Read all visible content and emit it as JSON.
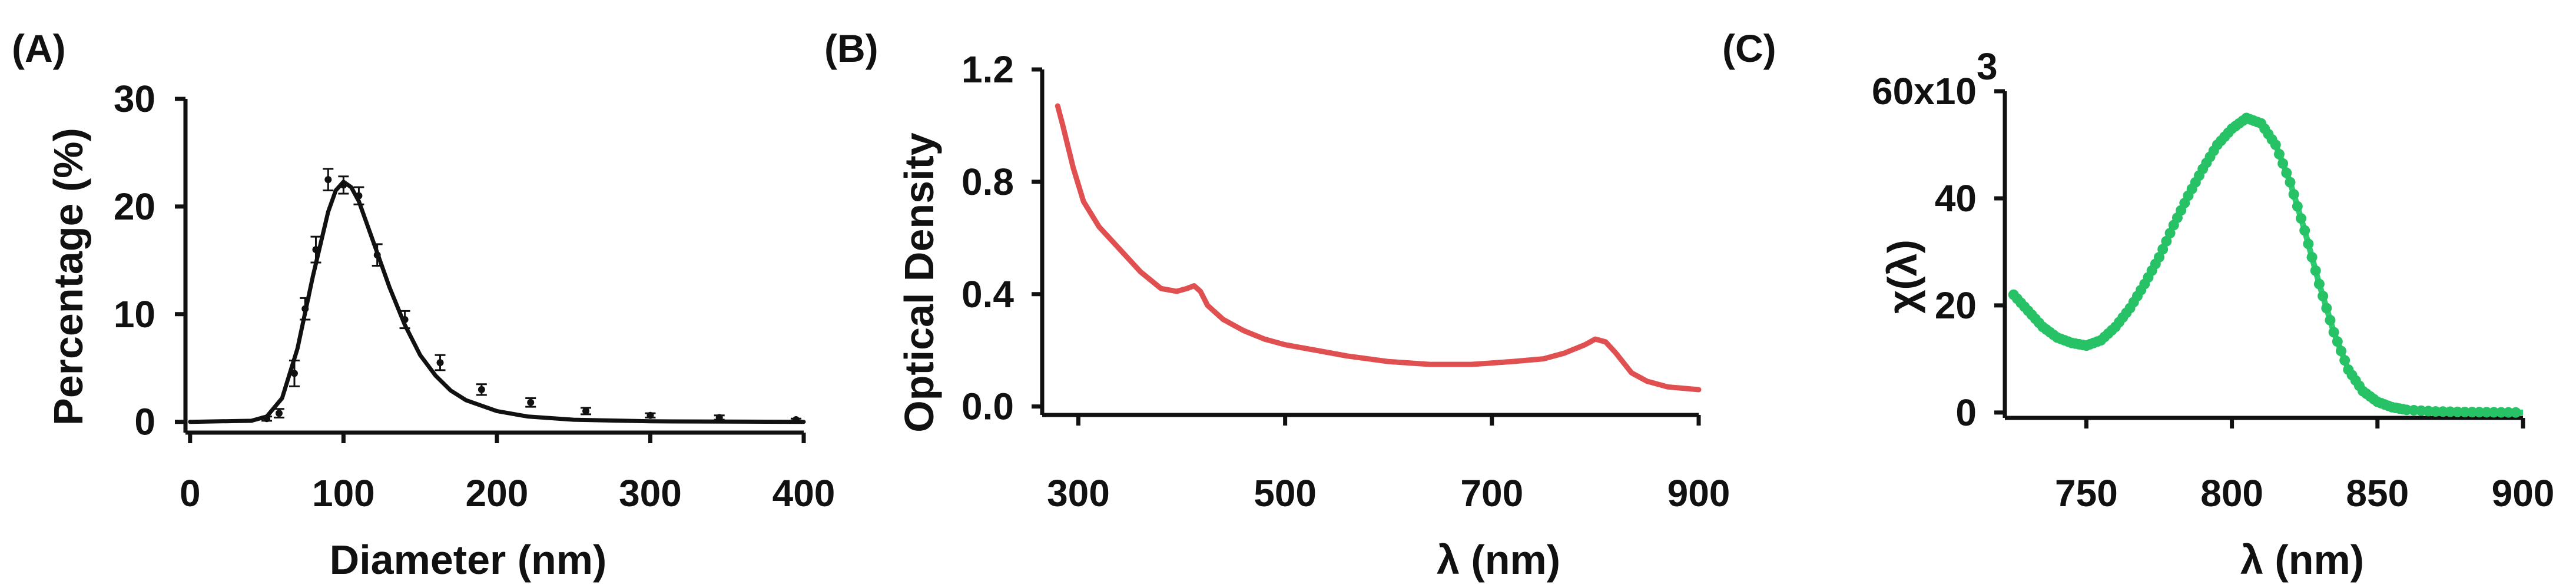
{
  "chart_data": [
    {
      "type": "scatter",
      "panel_label": "(A)",
      "xlabel": "Diameter (nm)",
      "ylabel": "Percentage (%)",
      "xlim": [
        -3,
        400
      ],
      "ylim": [
        -1,
        30
      ],
      "xticks": [
        0,
        100,
        200,
        300,
        400
      ],
      "yticks": [
        0,
        10,
        20,
        30
      ],
      "tick_labels_x": [
        "0",
        "100",
        "200",
        "300",
        "400"
      ],
      "tick_labels_y": [
        "0",
        "10",
        "20",
        "30"
      ],
      "series": [
        {
          "kind": "points_with_errorbars",
          "x": [
            50,
            58,
            68,
            75,
            82,
            90,
            100,
            110,
            122,
            140,
            163,
            190,
            222,
            258,
            300,
            345,
            395
          ],
          "y": [
            0.3,
            0.8,
            4.5,
            10.5,
            16.0,
            22.5,
            22.0,
            21.0,
            15.5,
            9.5,
            5.5,
            3.0,
            1.8,
            1.0,
            0.6,
            0.4,
            0.2
          ],
          "err": [
            0.2,
            0.4,
            1.2,
            1.0,
            1.2,
            1.0,
            0.8,
            0.8,
            1.0,
            0.8,
            0.7,
            0.5,
            0.4,
            0.3,
            0.2,
            0.2,
            0.1
          ]
        },
        {
          "kind": "fit_line",
          "x": [
            0,
            40,
            50,
            60,
            70,
            80,
            90,
            95,
            100,
            105,
            110,
            120,
            130,
            140,
            150,
            160,
            170,
            180,
            200,
            220,
            250,
            300,
            350,
            400
          ],
          "y": [
            0.0,
            0.1,
            0.5,
            2.2,
            6.8,
            13.5,
            19.5,
            21.5,
            22.3,
            21.8,
            20.5,
            16.5,
            12.5,
            9.0,
            6.2,
            4.3,
            2.9,
            2.0,
            1.0,
            0.5,
            0.2,
            0.05,
            0.02,
            0.0
          ]
        }
      ],
      "colors": {
        "line": "#111111",
        "points": "#111111"
      }
    },
    {
      "type": "line",
      "panel_label": "(B)",
      "xlabel": "λ (nm)",
      "ylabel": "Optical Density",
      "xlim": [
        265,
        900
      ],
      "ylim": [
        -0.03,
        1.2
      ],
      "xticks": [
        300,
        500,
        700,
        900
      ],
      "yticks": [
        0.0,
        0.4,
        0.8,
        1.2
      ],
      "tick_labels_x": [
        "300",
        "500",
        "700",
        "900"
      ],
      "tick_labels_y": [
        "0.0",
        "0.4",
        "0.8",
        "1.2"
      ],
      "series": [
        {
          "x": [
            280,
            285,
            295,
            305,
            320,
            340,
            360,
            380,
            395,
            405,
            412,
            418,
            425,
            440,
            460,
            480,
            500,
            530,
            560,
            600,
            640,
            680,
            720,
            750,
            770,
            790,
            800,
            810,
            820,
            835,
            850,
            870,
            900
          ],
          "y": [
            1.07,
            1.0,
            0.85,
            0.73,
            0.64,
            0.56,
            0.48,
            0.42,
            0.41,
            0.42,
            0.43,
            0.41,
            0.36,
            0.31,
            0.27,
            0.24,
            0.22,
            0.2,
            0.18,
            0.16,
            0.15,
            0.15,
            0.16,
            0.17,
            0.19,
            0.22,
            0.24,
            0.23,
            0.19,
            0.12,
            0.09,
            0.07,
            0.06
          ]
        }
      ],
      "colors": {
        "line": "#e05050"
      }
    },
    {
      "type": "scatter",
      "panel_label": "(C)",
      "xlabel": "λ (nm)",
      "ylabel": "χ(λ)",
      "xlim": [
        722,
        900
      ],
      "ylim": [
        -1000,
        60000
      ],
      "xticks": [
        750,
        800,
        850,
        900
      ],
      "yticks": [
        0,
        20000,
        40000,
        60000
      ],
      "tick_labels_x": [
        "750",
        "800",
        "850",
        "900"
      ],
      "tick_labels_y": [
        "0",
        "20",
        "40",
        "60x10"
      ],
      "y_exponent_label": "3",
      "series": [
        {
          "kind": "dense_points_line",
          "x": [
            725,
            730,
            735,
            740,
            745,
            750,
            755,
            760,
            765,
            770,
            775,
            780,
            785,
            790,
            795,
            800,
            805,
            810,
            815,
            820,
            825,
            830,
            835,
            840,
            845,
            850,
            855,
            860,
            870,
            880,
            890,
            900
          ],
          "y": [
            22000,
            19000,
            16000,
            14000,
            13000,
            12500,
            13500,
            16000,
            19500,
            24000,
            29000,
            35000,
            40500,
            45500,
            50000,
            53000,
            55000,
            54000,
            50000,
            43000,
            34000,
            24000,
            15000,
            8000,
            4000,
            2000,
            1000,
            500,
            200,
            100,
            50,
            0
          ]
        }
      ],
      "colors": {
        "line": "#2ecc71",
        "points": "#27c266"
      }
    }
  ]
}
